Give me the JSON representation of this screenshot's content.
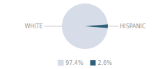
{
  "chart_data": {
    "type": "pie",
    "categories": [
      "WHITE",
      "HISPANIC"
    ],
    "values": [
      97.4,
      2.6
    ],
    "value_labels": [
      "97.4%",
      "2.6%"
    ],
    "colors": [
      "#d6dde8",
      "#2e5f7a"
    ],
    "legend": "bottom"
  }
}
